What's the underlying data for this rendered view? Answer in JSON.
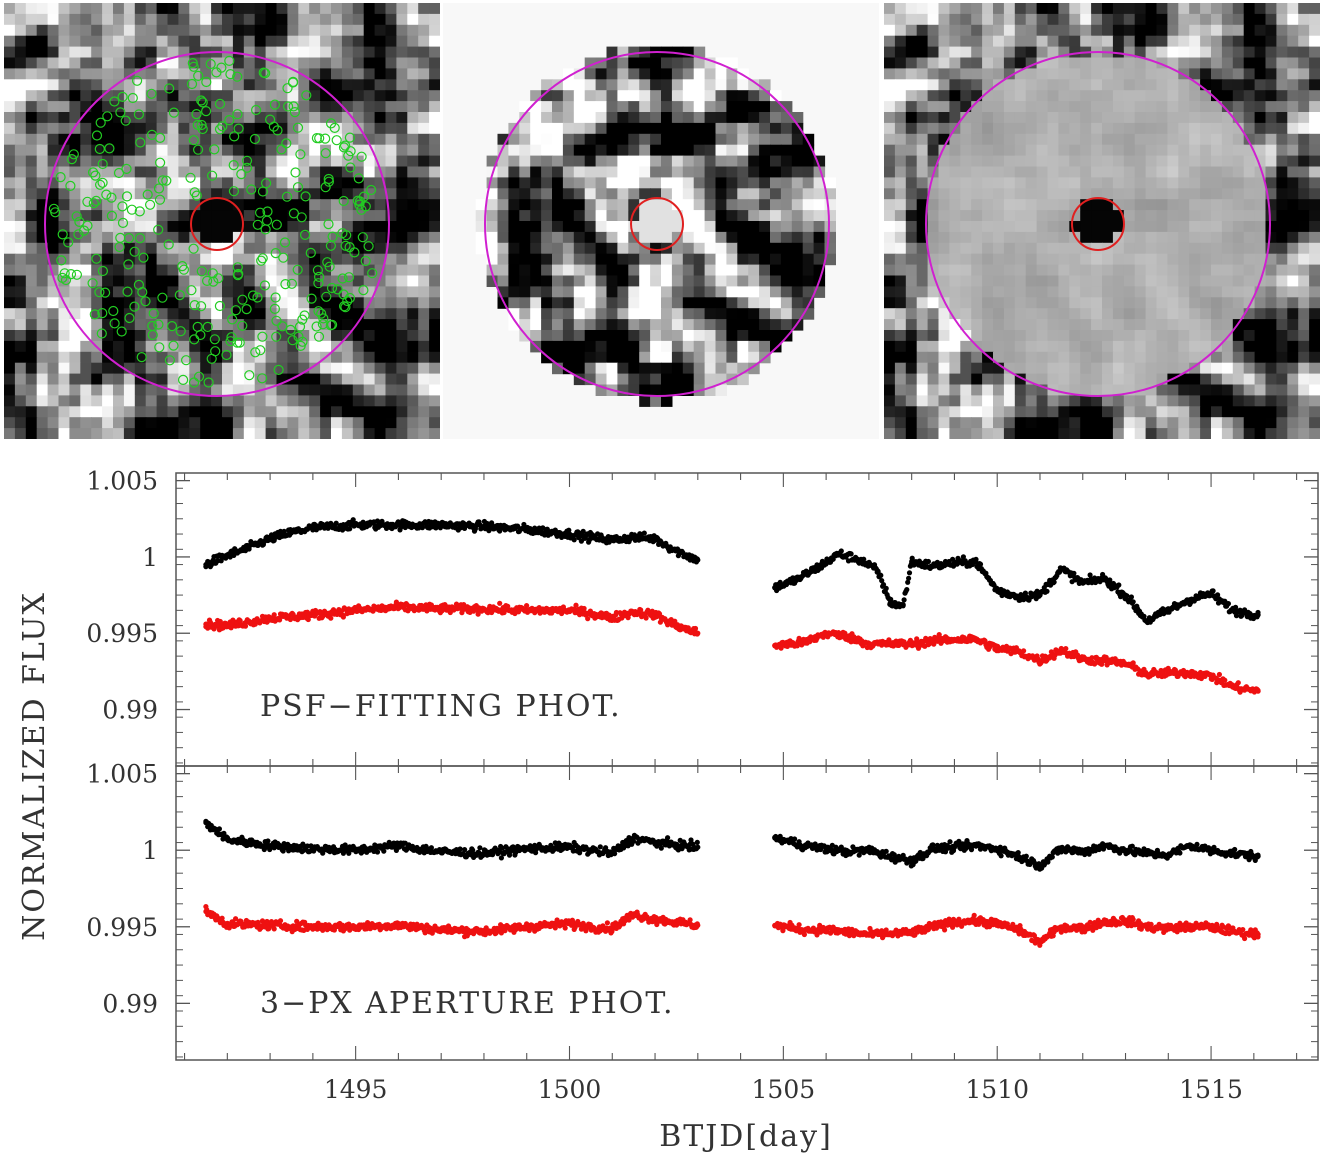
{
  "images": {
    "panels": [
      {
        "name": "original-image",
        "background": "field",
        "big_circle": "#d020d0",
        "small_circle": "#e02020",
        "center_fill": "dark",
        "neighbor_markers": "#22cc22"
      },
      {
        "name": "model-image",
        "background": "white",
        "big_circle": "#d020d0",
        "small_circle": "#e02020",
        "center_fill": "bright"
      },
      {
        "name": "subtracted-image",
        "background": "field",
        "big_circle": "#d020d0",
        "small_circle": "#e02020",
        "center_fill": "dark"
      }
    ]
  },
  "chart_data": {
    "type": "scatter",
    "xlabel": "BTJD[day]",
    "ylabel": "NORMALIZED FLUX",
    "xlim": [
      1490.8,
      1517.5
    ],
    "x_ticks": [
      "1495",
      "1500",
      "1505",
      "1510",
      "1515"
    ],
    "colors": {
      "raw": "#000000",
      "corrected": "#ee1111"
    },
    "panels": [
      {
        "name": "psf-panel",
        "annotation": "PSF−FITTING PHOT.",
        "ylim": [
          0.9863,
          1.0055
        ],
        "y_ticks": [
          "1.005",
          "1",
          "0.995",
          "0.99"
        ],
        "series": [
          {
            "color": "raw",
            "points": [
              [
                1491.5,
                0.9995
              ],
              [
                1492.0,
                1.0001
              ],
              [
                1492.5,
                1.0006
              ],
              [
                1493.0,
                1.0012
              ],
              [
                1493.5,
                1.0016
              ],
              [
                1494.0,
                1.0019
              ],
              [
                1495.0,
                1.0021
              ],
              [
                1496.0,
                1.0021
              ],
              [
                1497.0,
                1.0021
              ],
              [
                1498.0,
                1.002
              ],
              [
                1499.0,
                1.0018
              ],
              [
                1500.0,
                1.0015
              ],
              [
                1500.5,
                1.0013
              ],
              [
                1501.0,
                1.0011
              ],
              [
                1501.5,
                1.0013
              ],
              [
                1502.0,
                1.0012
              ],
              [
                1502.5,
                1.0004
              ],
              [
                1503.0,
                0.9998
              ],
              [
                1504.8,
                0.998
              ],
              [
                1505.3,
                0.9985
              ],
              [
                1505.8,
                0.9993
              ],
              [
                1506.3,
                1.0002
              ],
              [
                1506.8,
                0.9998
              ],
              [
                1507.2,
                0.9991
              ],
              [
                1507.5,
                0.997
              ],
              [
                1507.8,
                0.9968
              ],
              [
                1508.0,
                0.9997
              ],
              [
                1508.5,
                0.9994
              ],
              [
                1509.0,
                0.9996
              ],
              [
                1509.5,
                0.9997
              ],
              [
                1510.0,
                0.9978
              ],
              [
                1510.5,
                0.9974
              ],
              [
                1511.0,
                0.9975
              ],
              [
                1511.5,
                0.9992
              ],
              [
                1512.0,
                0.9983
              ],
              [
                1512.5,
                0.9986
              ],
              [
                1513.0,
                0.9975
              ],
              [
                1513.5,
                0.9958
              ],
              [
                1514.0,
                0.9965
              ],
              [
                1514.5,
                0.9972
              ],
              [
                1515.0,
                0.9976
              ],
              [
                1515.5,
                0.9965
              ],
              [
                1516.1,
                0.9962
              ]
            ]
          },
          {
            "color": "corrected",
            "points": [
              [
                1491.5,
                0.9956
              ],
              [
                1492.0,
                0.9955
              ],
              [
                1493.0,
                0.996
              ],
              [
                1494.0,
                0.9962
              ],
              [
                1495.0,
                0.9965
              ],
              [
                1496.0,
                0.9967
              ],
              [
                1497.0,
                0.9966
              ],
              [
                1498.0,
                0.9966
              ],
              [
                1499.0,
                0.9965
              ],
              [
                1500.0,
                0.9965
              ],
              [
                1500.5,
                0.9963
              ],
              [
                1501.0,
                0.996
              ],
              [
                1501.5,
                0.9964
              ],
              [
                1502.0,
                0.9962
              ],
              [
                1502.5,
                0.9955
              ],
              [
                1503.0,
                0.995
              ],
              [
                1504.8,
                0.9942
              ],
              [
                1505.5,
                0.9944
              ],
              [
                1506.0,
                0.995
              ],
              [
                1506.5,
                0.9948
              ],
              [
                1507.0,
                0.9943
              ],
              [
                1508.0,
                0.9943
              ],
              [
                1508.5,
                0.9945
              ],
              [
                1509.0,
                0.9946
              ],
              [
                1509.5,
                0.9946
              ],
              [
                1510.0,
                0.994
              ],
              [
                1510.5,
                0.9938
              ],
              [
                1511.0,
                0.9932
              ],
              [
                1511.5,
                0.9939
              ],
              [
                1512.0,
                0.9933
              ],
              [
                1512.5,
                0.9932
              ],
              [
                1513.0,
                0.993
              ],
              [
                1513.5,
                0.9923
              ],
              [
                1514.0,
                0.9924
              ],
              [
                1514.5,
                0.9924
              ],
              [
                1515.0,
                0.9922
              ],
              [
                1515.5,
                0.9915
              ],
              [
                1516.1,
                0.9912
              ]
            ]
          }
        ]
      },
      {
        "name": "aperture-panel",
        "annotation": "3−PX APERTURE PHOT.",
        "ylim": [
          0.9863,
          1.0055
        ],
        "y_ticks": [
          "1.005",
          "1",
          "0.995",
          "0.99"
        ],
        "series": [
          {
            "color": "raw",
            "points": [
              [
                1491.5,
                1.0018
              ],
              [
                1492.0,
                1.0007
              ],
              [
                1493.0,
                1.0003
              ],
              [
                1494.0,
                1.0001
              ],
              [
                1495.0,
                1.0
              ],
              [
                1496.0,
                1.0003
              ],
              [
                1497.0,
                0.9999
              ],
              [
                1498.0,
                0.9998
              ],
              [
                1499.0,
                1.0001
              ],
              [
                1500.0,
                1.0002
              ],
              [
                1500.5,
                1.0
              ],
              [
                1501.0,
                0.9998
              ],
              [
                1501.5,
                1.0008
              ],
              [
                1502.0,
                1.0005
              ],
              [
                1503.0,
                1.0002
              ],
              [
                1504.8,
                1.0008
              ],
              [
                1505.5,
                1.0003
              ],
              [
                1506.0,
                1.0001
              ],
              [
                1506.5,
                0.9999
              ],
              [
                1507.0,
                1.0
              ],
              [
                1507.5,
                0.9996
              ],
              [
                1508.0,
                0.9993
              ],
              [
                1508.5,
                1.0001
              ],
              [
                1509.0,
                1.0002
              ],
              [
                1509.5,
                1.0003
              ],
              [
                1510.0,
                1.0001
              ],
              [
                1510.5,
                0.9996
              ],
              [
                1511.0,
                0.999
              ],
              [
                1511.5,
                1.0001
              ],
              [
                1512.0,
                0.9999
              ],
              [
                1512.5,
                1.0003
              ],
              [
                1513.0,
                1.0
              ],
              [
                1513.5,
                0.9998
              ],
              [
                1514.0,
                0.9997
              ],
              [
                1514.5,
                1.0003
              ],
              [
                1515.0,
                1.0
              ],
              [
                1515.5,
                0.9998
              ],
              [
                1516.1,
                0.9996
              ]
            ]
          },
          {
            "color": "corrected",
            "points": [
              [
                1491.5,
                0.996
              ],
              [
                1492.0,
                0.9952
              ],
              [
                1493.0,
                0.9951
              ],
              [
                1494.0,
                0.995
              ],
              [
                1495.0,
                0.995
              ],
              [
                1496.0,
                0.9951
              ],
              [
                1497.0,
                0.9948
              ],
              [
                1498.0,
                0.9947
              ],
              [
                1499.0,
                0.995
              ],
              [
                1500.0,
                0.9952
              ],
              [
                1500.5,
                0.995
              ],
              [
                1501.0,
                0.9949
              ],
              [
                1501.5,
                0.9958
              ],
              [
                1502.0,
                0.9955
              ],
              [
                1503.0,
                0.9951
              ],
              [
                1504.8,
                0.9951
              ],
              [
                1505.5,
                0.9948
              ],
              [
                1506.0,
                0.9948
              ],
              [
                1507.0,
                0.9945
              ],
              [
                1508.0,
                0.9946
              ],
              [
                1508.5,
                0.995
              ],
              [
                1509.0,
                0.9953
              ],
              [
                1509.5,
                0.9954
              ],
              [
                1510.0,
                0.9952
              ],
              [
                1510.5,
                0.9948
              ],
              [
                1511.0,
                0.994
              ],
              [
                1511.5,
                0.995
              ],
              [
                1512.0,
                0.9949
              ],
              [
                1512.5,
                0.9953
              ],
              [
                1513.0,
                0.9954
              ],
              [
                1513.5,
                0.995
              ],
              [
                1514.0,
                0.9949
              ],
              [
                1514.5,
                0.995
              ],
              [
                1515.0,
                0.995
              ],
              [
                1515.5,
                0.9947
              ],
              [
                1516.1,
                0.9945
              ]
            ]
          }
        ]
      }
    ]
  }
}
